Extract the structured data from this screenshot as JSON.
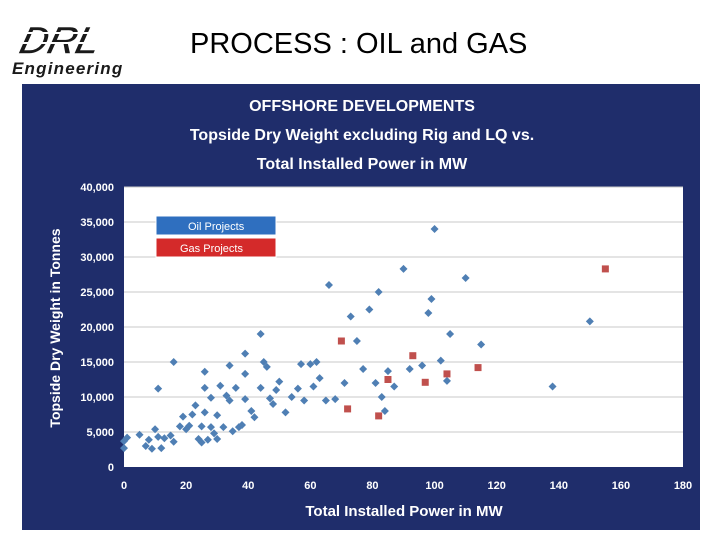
{
  "header": {
    "logo_main": "DRL",
    "logo_sub": "Engineering",
    "title": "PROCESS : OIL and GAS"
  },
  "colors": {
    "panel_bg": "#1f2d6b",
    "plot_bg": "#ffffff",
    "grid": "#c9c9c9",
    "oil": "#4f7fb4",
    "gas": "#c0504d",
    "legend_oil_bg": "#2f6fbf",
    "legend_gas_bg": "#d42a2a",
    "logo_fill": "#1a1a1a"
  },
  "chart_data": {
    "type": "scatter",
    "title": [
      "OFFSHORE DEVELOPMENTS",
      "Topside Dry Weight excluding Rig and LQ vs.",
      "Total Installed Power in MW"
    ],
    "xlabel": "Total  Installed Power in MW",
    "ylabel": "Topside Dry Weight in Tonnes",
    "xlim": [
      0,
      180
    ],
    "ylim": [
      0,
      40000
    ],
    "x_ticks": [
      "0",
      "20",
      "40",
      "60",
      "80",
      "100",
      "120",
      "140",
      "160",
      "180"
    ],
    "y_ticks": [
      "0",
      "5,000",
      "10,000",
      "15,000",
      "20,000",
      "25,000",
      "30,000",
      "35,000",
      "40,000"
    ],
    "grid": "horizontal",
    "legend_position": "top-left",
    "series": [
      {
        "name": "Oil Projects",
        "marker": "diamond",
        "points": [
          [
            0,
            2700
          ],
          [
            0,
            3700
          ],
          [
            1,
            4200
          ],
          [
            5,
            4600
          ],
          [
            7,
            3000
          ],
          [
            8,
            3900
          ],
          [
            9,
            2600
          ],
          [
            10,
            5400
          ],
          [
            11,
            4300
          ],
          [
            12,
            2700
          ],
          [
            13,
            4100
          ],
          [
            15,
            4500
          ],
          [
            16,
            3600
          ],
          [
            16,
            15000
          ],
          [
            11,
            11200
          ],
          [
            18,
            5800
          ],
          [
            19,
            7200
          ],
          [
            20,
            5400
          ],
          [
            21,
            5900
          ],
          [
            22,
            7500
          ],
          [
            23,
            8800
          ],
          [
            24,
            4000
          ],
          [
            25,
            3500
          ],
          [
            25,
            5800
          ],
          [
            26,
            7800
          ],
          [
            26,
            11300
          ],
          [
            26,
            13600
          ],
          [
            27,
            3900
          ],
          [
            28,
            5700
          ],
          [
            28,
            9900
          ],
          [
            29,
            4800
          ],
          [
            30,
            4000
          ],
          [
            30,
            7400
          ],
          [
            31,
            11600
          ],
          [
            32,
            5700
          ],
          [
            33,
            10200
          ],
          [
            34,
            9500
          ],
          [
            34,
            14500
          ],
          [
            35,
            5100
          ],
          [
            36,
            11300
          ],
          [
            37,
            5700
          ],
          [
            38,
            6000
          ],
          [
            39,
            9700
          ],
          [
            39,
            13300
          ],
          [
            39,
            16200
          ],
          [
            41,
            8000
          ],
          [
            42,
            7100
          ],
          [
            44,
            11300
          ],
          [
            44,
            19000
          ],
          [
            45,
            15000
          ],
          [
            46,
            14300
          ],
          [
            47,
            9800
          ],
          [
            48,
            9000
          ],
          [
            49,
            11000
          ],
          [
            50,
            12200
          ],
          [
            52,
            7800
          ],
          [
            54,
            10000
          ],
          [
            56,
            11200
          ],
          [
            57,
            14700
          ],
          [
            58,
            9500
          ],
          [
            60,
            14700
          ],
          [
            61,
            11500
          ],
          [
            62,
            15000
          ],
          [
            63,
            12700
          ],
          [
            65,
            9500
          ],
          [
            66,
            26000
          ],
          [
            68,
            9700
          ],
          [
            71,
            12000
          ],
          [
            73,
            21500
          ],
          [
            75,
            18000
          ],
          [
            77,
            14000
          ],
          [
            79,
            22500
          ],
          [
            81,
            12000
          ],
          [
            82,
            25000
          ],
          [
            83,
            10000
          ],
          [
            84,
            8000
          ],
          [
            85,
            13700
          ],
          [
            87,
            11500
          ],
          [
            90,
            28300
          ],
          [
            92,
            14000
          ],
          [
            96,
            14500
          ],
          [
            98,
            22000
          ],
          [
            99,
            24000
          ],
          [
            100,
            34000
          ],
          [
            102,
            15200
          ],
          [
            104,
            12300
          ],
          [
            105,
            19000
          ],
          [
            110,
            27000
          ],
          [
            115,
            17500
          ],
          [
            138,
            11500
          ],
          [
            150,
            20800
          ]
        ]
      },
      {
        "name": "Gas Projects",
        "marker": "square",
        "points": [
          [
            70,
            18000
          ],
          [
            72,
            8300
          ],
          [
            82,
            7300
          ],
          [
            85,
            12500
          ],
          [
            93,
            15900
          ],
          [
            97,
            12100
          ],
          [
            104,
            13300
          ],
          [
            114,
            14200
          ],
          [
            155,
            28300
          ]
        ]
      }
    ]
  }
}
